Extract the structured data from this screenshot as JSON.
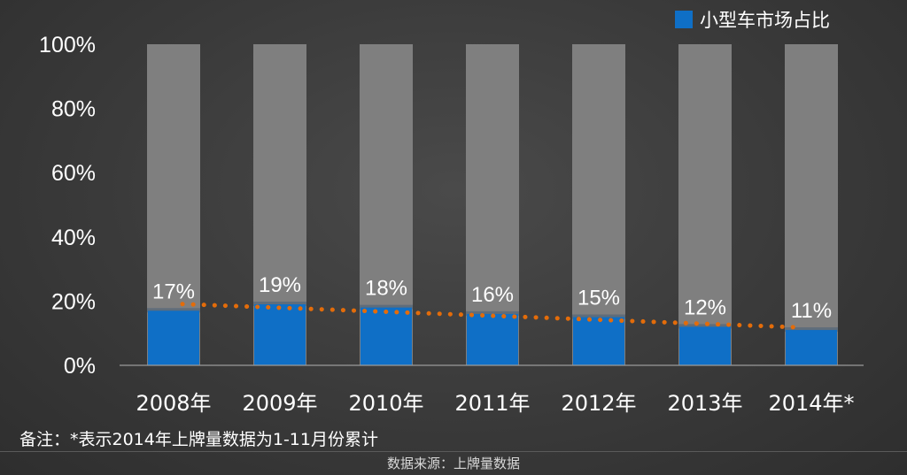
{
  "chart_data": {
    "type": "bar",
    "title": "",
    "categories": [
      "2008年",
      "2009年",
      "2010年",
      "2011年",
      "2012年",
      "2013年",
      "2014年*"
    ],
    "series": [
      {
        "name": "小型车市场占比",
        "values": [
          17,
          19,
          18,
          16,
          15,
          12,
          11
        ],
        "color": "#0f6fc6"
      }
    ],
    "data_labels": [
      "17%",
      "19%",
      "18%",
      "16%",
      "15%",
      "12%",
      "11%"
    ],
    "yticks": [
      "0%",
      "20%",
      "40%",
      "60%",
      "80%",
      "100%"
    ],
    "ylim": [
      0,
      100
    ],
    "background_bar_value": 100,
    "background_bar_color": "#7f7f7f",
    "trendline": {
      "type": "linear",
      "style": "dotted",
      "color": "#e36c0a"
    },
    "legend": {
      "position": "top-right"
    },
    "grid": false
  },
  "note": "备注：*表示2014年上牌量数据为1-11月份累计",
  "source": "数据来源：上牌量数据"
}
